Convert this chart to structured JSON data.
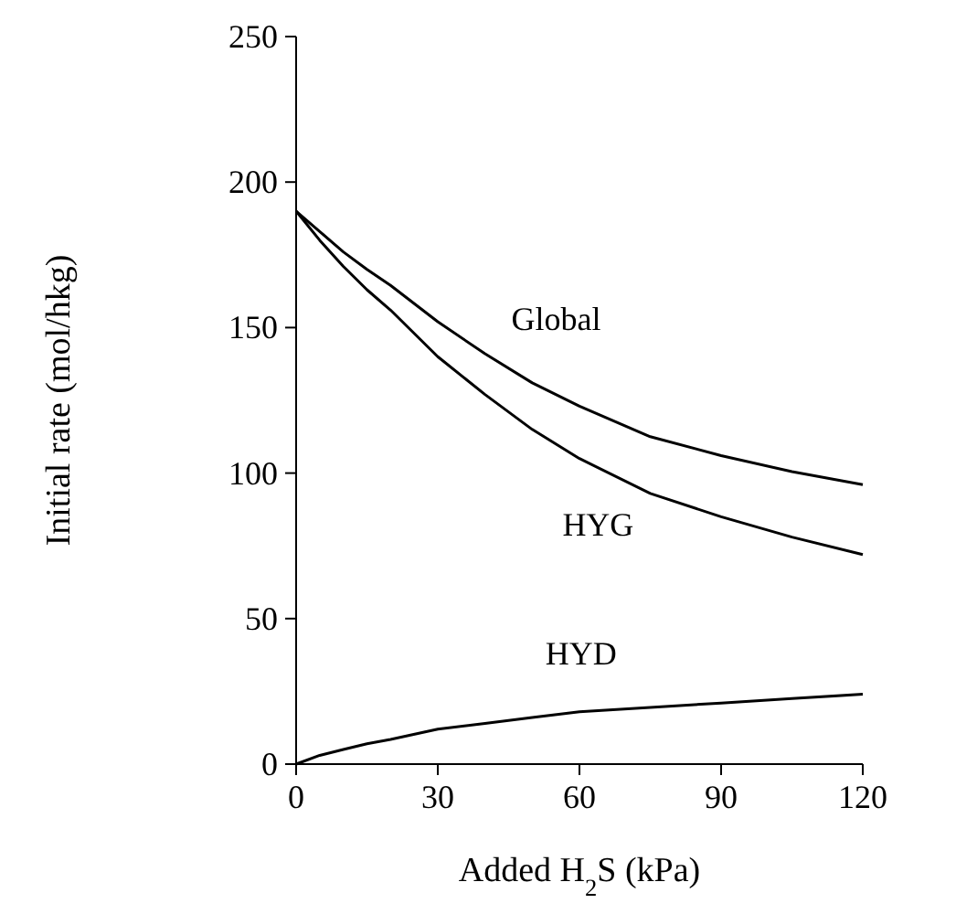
{
  "chart_data": {
    "type": "line",
    "xlabel": "Added H$_{2}$S (kPa)",
    "ylabel": "Initial rate (mol/hkg)",
    "x": [
      0,
      5,
      10,
      15,
      20,
      30,
      40,
      50,
      60,
      75,
      90,
      105,
      120
    ],
    "series": [
      {
        "name": "Global",
        "color": "#000000",
        "values": [
          190,
          183,
          176,
          170,
          164.5,
          152,
          141,
          131,
          123,
          112.5,
          106,
          100.5,
          96
        ]
      },
      {
        "name": "HYG",
        "color": "#000000",
        "values": [
          190,
          180,
          171,
          163,
          156,
          140,
          127,
          115,
          105,
          93,
          85,
          78,
          72
        ]
      },
      {
        "name": "HYD",
        "color": "#000000",
        "values": [
          0,
          3,
          5,
          7,
          8.5,
          12,
          14,
          16,
          18,
          19.5,
          21,
          22.5,
          24
        ]
      }
    ],
    "xlim": [
      0,
      120
    ],
    "xticks": [
      0,
      30,
      60,
      90,
      120
    ],
    "ylim": [
      0,
      250
    ],
    "yticks": [
      0,
      50,
      100,
      150,
      200,
      250
    ],
    "grid": false,
    "marker": "none",
    "line_style": "solid"
  }
}
